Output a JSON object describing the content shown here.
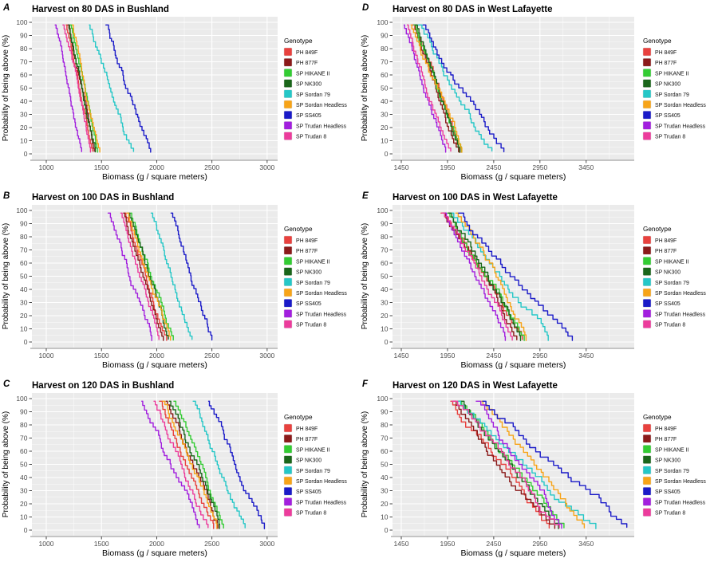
{
  "figure": {
    "legend_title": "Genotype",
    "xlabel": "Biomass (g / square meters)",
    "ylabel": "Probability of being above (%)",
    "plot_bg_color": "#EBEBEB",
    "grid_color": "#FFFFFF",
    "axis_text_color": "#4d4d4d",
    "genotypes": [
      {
        "label": "PH 849F",
        "color": "#E8413E"
      },
      {
        "label": "PH 877F",
        "color": "#8B1A1A"
      },
      {
        "label": "SP HIKANE II",
        "color": "#33CC33"
      },
      {
        "label": "SP NK300",
        "color": "#1A661A"
      },
      {
        "label": "SP Sordan 79",
        "color": "#25C7C7"
      },
      {
        "label": "SP Sordan Headless",
        "color": "#F7A418"
      },
      {
        "label": "SP SS405",
        "color": "#1A1AC8"
      },
      {
        "label": "SP Trudan Headless",
        "color": "#A21FDE"
      },
      {
        "label": "SP Trudan 8",
        "color": "#EC3C9C"
      }
    ]
  },
  "chart_data": [
    {
      "type": "line",
      "letter": "A",
      "title": "Harvest on 80 DAS in Bushland",
      "xlabel": "Biomass (g / square meters)",
      "ylabel": "Probability of being above (%)",
      "xlim": [
        870,
        3095
      ],
      "x_ticks": [
        1000,
        1500,
        2000,
        2500,
        3000
      ],
      "ylim": [
        0,
        100
      ],
      "y_ticks": [
        0,
        10,
        20,
        30,
        40,
        50,
        60,
        70,
        80,
        90,
        100
      ],
      "series": [
        {
          "name": "PH 849F",
          "x_at_98pct": 1180,
          "x_at_2pct": 1420
        },
        {
          "name": "PH 877F",
          "x_at_98pct": 1195,
          "x_at_2pct": 1435
        },
        {
          "name": "SP HIKANE II",
          "x_at_98pct": 1220,
          "x_at_2pct": 1465
        },
        {
          "name": "SP NK300",
          "x_at_98pct": 1205,
          "x_at_2pct": 1445
        },
        {
          "name": "SP Sordan 79",
          "x_at_98pct": 1390,
          "x_at_2pct": 1790
        },
        {
          "name": "SP Sordan Headless",
          "x_at_98pct": 1235,
          "x_at_2pct": 1485
        },
        {
          "name": "SP SS405",
          "x_at_98pct": 1540,
          "x_at_2pct": 1945
        },
        {
          "name": "SP Trudan Headless",
          "x_at_98pct": 1080,
          "x_at_2pct": 1320
        },
        {
          "name": "SP Trudan 8",
          "x_at_98pct": 1150,
          "x_at_2pct": 1400
        }
      ]
    },
    {
      "type": "line",
      "letter": "B",
      "title": "Harvest on 100 DAS in Bushland",
      "xlabel": "Biomass (g / square meters)",
      "ylabel": "Probability of being above (%)",
      "xlim": [
        870,
        3095
      ],
      "x_ticks": [
        1000,
        1500,
        2000,
        2500,
        3000
      ],
      "ylim": [
        0,
        100
      ],
      "y_ticks": [
        0,
        10,
        20,
        30,
        40,
        50,
        60,
        70,
        80,
        90,
        100
      ],
      "series": [
        {
          "name": "PH 849F",
          "x_at_98pct": 1715,
          "x_at_2pct": 2090
        },
        {
          "name": "PH 877F",
          "x_at_98pct": 1700,
          "x_at_2pct": 2060
        },
        {
          "name": "SP HIKANE II",
          "x_at_98pct": 1765,
          "x_at_2pct": 2150
        },
        {
          "name": "SP NK300",
          "x_at_98pct": 1740,
          "x_at_2pct": 2105
        },
        {
          "name": "SP Sordan 79",
          "x_at_98pct": 1950,
          "x_at_2pct": 2320
        },
        {
          "name": "SP Sordan Headless",
          "x_at_98pct": 1730,
          "x_at_2pct": 2125
        },
        {
          "name": "SP SS405",
          "x_at_98pct": 2130,
          "x_at_2pct": 2500
        },
        {
          "name": "SP Trudan Headless",
          "x_at_98pct": 1560,
          "x_at_2pct": 1955
        },
        {
          "name": "SP Trudan 8",
          "x_at_98pct": 1675,
          "x_at_2pct": 2020
        }
      ]
    },
    {
      "type": "line",
      "letter": "C",
      "title": "Harvest on 120 DAS in Bushland",
      "xlabel": "Biomass (g / square meters)",
      "ylabel": "Probability of being above (%)",
      "xlim": [
        870,
        3095
      ],
      "x_ticks": [
        1000,
        1500,
        2000,
        2500,
        3000
      ],
      "ylim": [
        0,
        100
      ],
      "y_ticks": [
        0,
        10,
        20,
        30,
        40,
        50,
        60,
        70,
        80,
        90,
        100
      ],
      "series": [
        {
          "name": "PH 849F",
          "x_at_98pct": 2025,
          "x_at_2pct": 2515
        },
        {
          "name": "PH 877F",
          "x_at_98pct": 2085,
          "x_at_2pct": 2555
        },
        {
          "name": "SP HIKANE II",
          "x_at_98pct": 2155,
          "x_at_2pct": 2605
        },
        {
          "name": "SP NK300",
          "x_at_98pct": 2115,
          "x_at_2pct": 2570
        },
        {
          "name": "SP Sordan 79",
          "x_at_98pct": 2330,
          "x_at_2pct": 2800
        },
        {
          "name": "SP Sordan Headless",
          "x_at_98pct": 2055,
          "x_at_2pct": 2545
        },
        {
          "name": "SP SS405",
          "x_at_98pct": 2470,
          "x_at_2pct": 2975
        },
        {
          "name": "SP Trudan Headless",
          "x_at_98pct": 1865,
          "x_at_2pct": 2385
        },
        {
          "name": "SP Trudan 8",
          "x_at_98pct": 1975,
          "x_at_2pct": 2465
        }
      ]
    },
    {
      "type": "line",
      "letter": "D",
      "title": "Harvest on 80 DAS in West Lafayette",
      "xlabel": "Biomass (g / square meters)",
      "ylabel": "Probability of being above (%)",
      "xlim": [
        1355,
        3970
      ],
      "x_ticks": [
        1450,
        1950,
        2450,
        2950,
        3450
      ],
      "ylim": [
        0,
        100
      ],
      "y_ticks": [
        0,
        10,
        20,
        30,
        40,
        50,
        60,
        70,
        80,
        90,
        100
      ],
      "series": [
        {
          "name": "PH 849F",
          "x_at_98pct": 1570,
          "x_at_2pct": 2085
        },
        {
          "name": "PH 877F",
          "x_at_98pct": 1590,
          "x_at_2pct": 2070
        },
        {
          "name": "SP HIKANE II",
          "x_at_98pct": 1585,
          "x_at_2pct": 2100
        },
        {
          "name": "SP NK300",
          "x_at_98pct": 1605,
          "x_at_2pct": 2080
        },
        {
          "name": "SP Sordan 79",
          "x_at_98pct": 1635,
          "x_at_2pct": 2430
        },
        {
          "name": "SP Sordan Headless",
          "x_at_98pct": 1555,
          "x_at_2pct": 2105
        },
        {
          "name": "SP SS405",
          "x_at_98pct": 1685,
          "x_at_2pct": 2560
        },
        {
          "name": "SP Trudan Headless",
          "x_at_98pct": 1480,
          "x_at_2pct": 1930
        },
        {
          "name": "SP Trudan 8",
          "x_at_98pct": 1515,
          "x_at_2pct": 1985
        }
      ]
    },
    {
      "type": "line",
      "letter": "E",
      "title": "Harvest on 100 DAS in West Lafayette",
      "xlabel": "Biomass (g / square meters)",
      "ylabel": "Probability of being above (%)",
      "xlim": [
        1355,
        3970
      ],
      "x_ticks": [
        1450,
        1950,
        2450,
        2950,
        3450
      ],
      "ylim": [
        0,
        100
      ],
      "y_ticks": [
        0,
        10,
        20,
        30,
        40,
        50,
        60,
        70,
        80,
        90,
        100
      ],
      "series": [
        {
          "name": "PH 849F",
          "x_at_98pct": 1880,
          "x_at_2pct": 2760
        },
        {
          "name": "PH 877F",
          "x_at_98pct": 1900,
          "x_at_2pct": 2700
        },
        {
          "name": "SP HIKANE II",
          "x_at_98pct": 1950,
          "x_at_2pct": 2780
        },
        {
          "name": "SP NK300",
          "x_at_98pct": 1960,
          "x_at_2pct": 2740
        },
        {
          "name": "SP Sordan 79",
          "x_at_98pct": 2000,
          "x_at_2pct": 3040
        },
        {
          "name": "SP Sordan Headless",
          "x_at_98pct": 2040,
          "x_at_2pct": 2800
        },
        {
          "name": "SP SS405",
          "x_at_98pct": 2070,
          "x_at_2pct": 3300
        },
        {
          "name": "SP Trudan Headless",
          "x_at_98pct": 1920,
          "x_at_2pct": 2575
        },
        {
          "name": "SP Trudan 8",
          "x_at_98pct": 1890,
          "x_at_2pct": 2650
        }
      ]
    },
    {
      "type": "line",
      "letter": "F",
      "title": "Harvest on 120 DAS in West Lafayette",
      "xlabel": "Biomass (g / square meters)",
      "ylabel": "Probability of being above (%)",
      "xlim": [
        1355,
        3970
      ],
      "x_ticks": [
        1450,
        1950,
        2450,
        2950,
        3450
      ],
      "ylim": [
        0,
        100
      ],
      "y_ticks": [
        0,
        10,
        20,
        30,
        40,
        50,
        60,
        70,
        80,
        90,
        100
      ],
      "series": [
        {
          "name": "PH 849F",
          "x_at_98pct": 1985,
          "x_at_2pct": 3050
        },
        {
          "name": "PH 877F",
          "x_at_98pct": 2015,
          "x_at_2pct": 3110
        },
        {
          "name": "SP HIKANE II",
          "x_at_98pct": 2060,
          "x_at_2pct": 3210
        },
        {
          "name": "SP NK300",
          "x_at_98pct": 2080,
          "x_at_2pct": 3150
        },
        {
          "name": "SP Sordan 79",
          "x_at_98pct": 2065,
          "x_at_2pct": 3555
        },
        {
          "name": "SP Sordan Headless",
          "x_at_98pct": 2320,
          "x_at_2pct": 3430
        },
        {
          "name": "SP SS405",
          "x_at_98pct": 2330,
          "x_at_2pct": 3890
        },
        {
          "name": "SP Trudan Headless",
          "x_at_98pct": 2260,
          "x_at_2pct": 3185
        },
        {
          "name": "SP Trudan 8",
          "x_at_98pct": 2000,
          "x_at_2pct": 3160
        }
      ]
    }
  ]
}
